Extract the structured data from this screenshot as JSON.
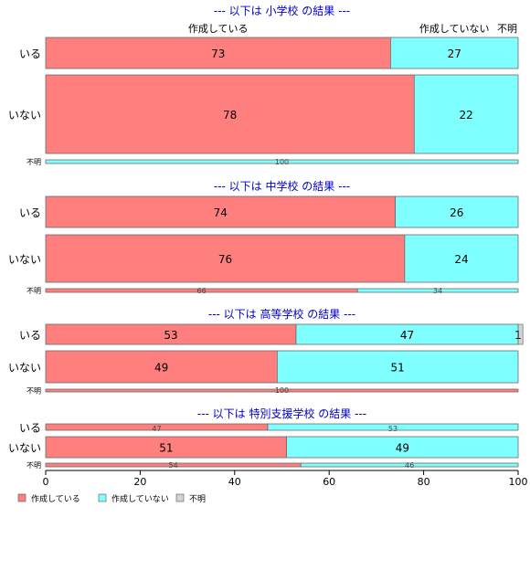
{
  "chart_data": {
    "type": "bar",
    "orientation": "horizontal",
    "stacked": "percent",
    "colors": {
      "作成している": "#ff7f7f",
      "作成していない": "#7fffff",
      "不明": "#d3d3d3",
      "title": "#0000cc",
      "border": "#555555"
    },
    "legend": {
      "placement": "bottom-left",
      "entries": [
        "作成している",
        "作成していない",
        "不明"
      ]
    },
    "top_column_labels": [
      "作成している",
      "作成していない",
      "不明"
    ],
    "x_ticks": [
      0,
      20,
      40,
      60,
      80,
      100
    ],
    "xlim": [
      0,
      100
    ],
    "grid": false,
    "panels": [
      {
        "title": "--- 以下は 小学校 の結果 ---",
        "rows": [
          {
            "label": "いる",
            "values": [
              73,
              27,
              0
            ],
            "labels": [
              "73",
              "27",
              ""
            ]
          },
          {
            "label": "いない",
            "values": [
              78,
              22,
              0
            ],
            "labels": [
              "78",
              "22",
              ""
            ]
          },
          {
            "label": "不明",
            "values": [
              0,
              100,
              0
            ],
            "labels": [
              "",
              "100",
              ""
            ]
          }
        ]
      },
      {
        "title": "--- 以下は 中学校 の結果 ---",
        "rows": [
          {
            "label": "いる",
            "values": [
              74,
              26,
              0
            ],
            "labels": [
              "74",
              "26",
              ""
            ]
          },
          {
            "label": "いない",
            "values": [
              76,
              24,
              0
            ],
            "labels": [
              "76",
              "24",
              ""
            ]
          },
          {
            "label": "不明",
            "values": [
              66,
              34,
              0
            ],
            "labels": [
              "66",
              "34",
              ""
            ]
          }
        ]
      },
      {
        "title": "--- 以下は 高等学校 の結果 ---",
        "rows": [
          {
            "label": "いる",
            "values": [
              53,
              47,
              1
            ],
            "labels": [
              "53",
              "47",
              "1"
            ]
          },
          {
            "label": "いない",
            "values": [
              49,
              51,
              0
            ],
            "labels": [
              "49",
              "51",
              ""
            ]
          },
          {
            "label": "不明",
            "values": [
              100,
              0,
              0
            ],
            "labels": [
              "100",
              "",
              ""
            ]
          }
        ]
      },
      {
        "title": "--- 以下は 特別支援学校 の結果 ---",
        "rows": [
          {
            "label": "いる",
            "values": [
              47,
              53,
              0
            ],
            "labels": [
              "47",
              "53",
              ""
            ]
          },
          {
            "label": "いない",
            "values": [
              51,
              49,
              0
            ],
            "labels": [
              "51",
              "49",
              ""
            ]
          },
          {
            "label": "不明",
            "values": [
              54,
              46,
              0
            ],
            "labels": [
              "54",
              "46",
              ""
            ]
          }
        ]
      }
    ]
  }
}
